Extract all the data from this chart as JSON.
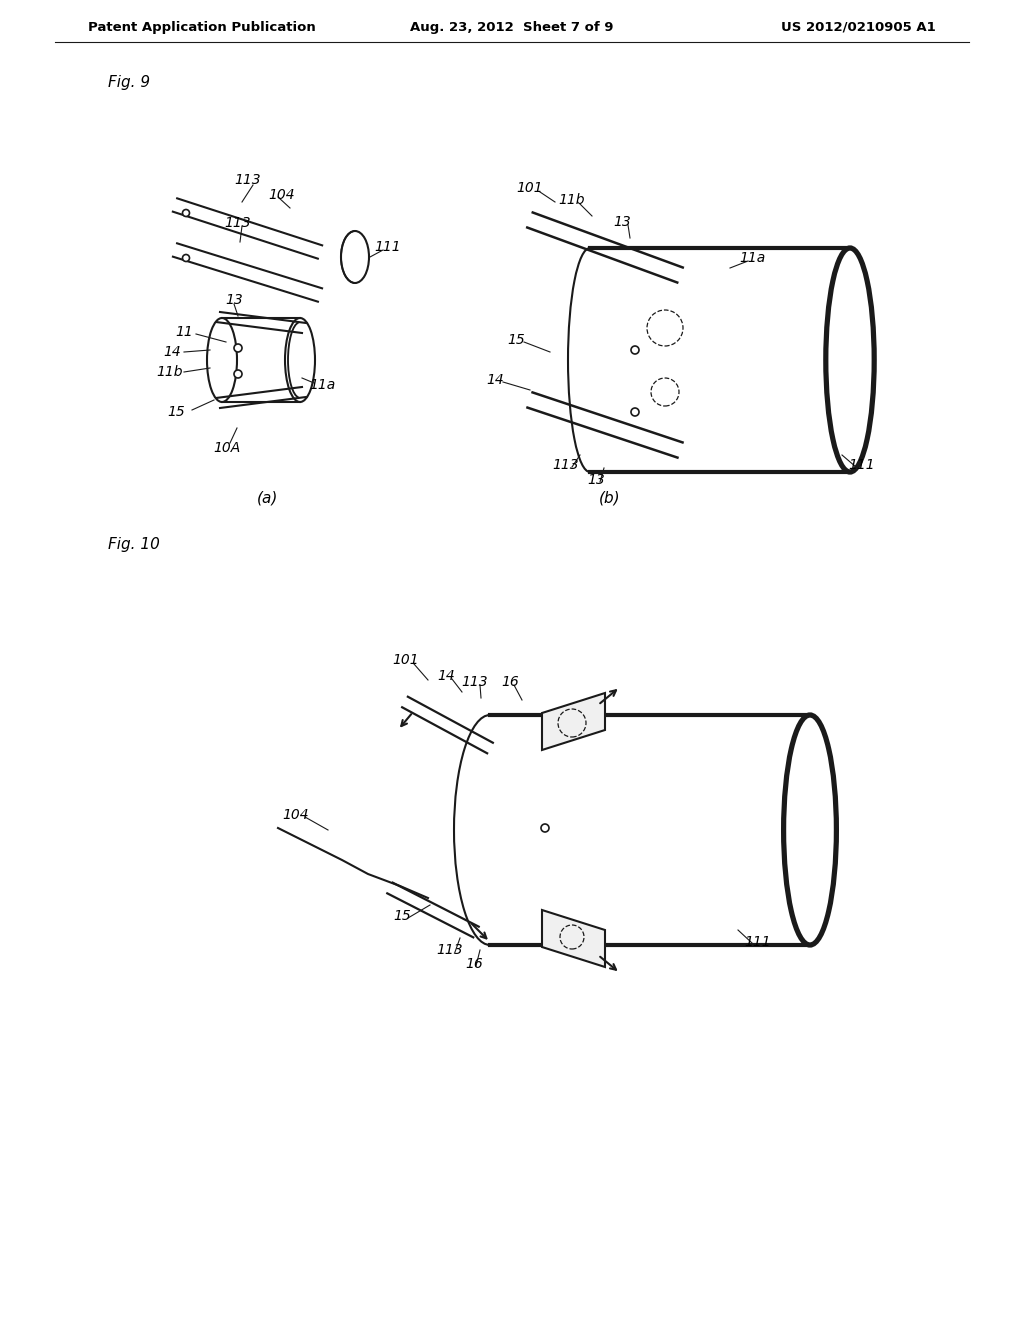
{
  "bg_color": "#ffffff",
  "header_left": "Patent Application Publication",
  "header_mid": "Aug. 23, 2012  Sheet 7 of 9",
  "header_right": "US 2012/0210905 A1",
  "fig9_label": "Fig. 9",
  "fig10_label": "Fig. 10",
  "sub_a_label": "(a)",
  "sub_b_label": "(b)",
  "lc": "#1a1a1a",
  "lw": 1.5
}
